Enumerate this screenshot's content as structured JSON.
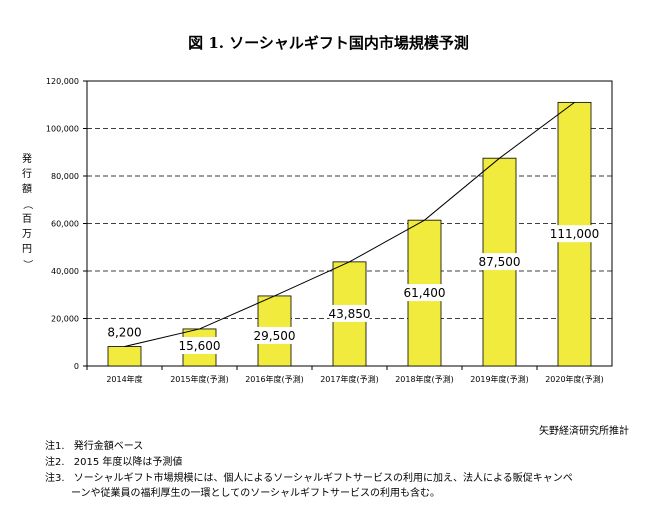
{
  "chart_data": {
    "type": "bar",
    "title": "図 1. ソーシャルギフト国内市場規模予測",
    "ylabel": "発行額（百万円）",
    "xlabel": "",
    "categories": [
      "2014年度",
      "2015年度(予測)",
      "2016年度(予測)",
      "2017年度(予測)",
      "2018年度(予測)",
      "2019年度(予測)",
      "2020年度(予測)"
    ],
    "values": [
      8200,
      15600,
      29500,
      43850,
      61400,
      87500,
      111000
    ],
    "data_labels": [
      "8,200",
      "15,600",
      "29,500",
      "43,850",
      "61,400",
      "87,500",
      "111,000"
    ],
    "ylim": [
      0,
      120000
    ],
    "yticks": [
      0,
      20000,
      40000,
      60000,
      80000,
      100000,
      120000
    ],
    "ytick_labels": [
      "0",
      "20,000",
      "40,000",
      "60,000",
      "80,000",
      "100,000",
      "120,000"
    ],
    "grid": "horizontal dashed",
    "trend_line": true,
    "colors": {
      "bar": "#f0eb3c",
      "bar_edge": "#000000",
      "line": "#000000"
    }
  },
  "source": "矢野経済研究所推計",
  "notes": [
    {
      "label": "注1.",
      "text": "発行金額ベース"
    },
    {
      "label": "注2.",
      "text": "2015 年度以降は予測値"
    },
    {
      "label": "注3.",
      "text": "ソーシャルギフト市場規模には、個人によるソーシャルギフトサービスの利用に加え、法人による販促キャンペ"
    }
  ],
  "note_continuation": "ーンや従業員の福利厚生の一環としてのソーシャルギフトサービスの利用も含む。"
}
